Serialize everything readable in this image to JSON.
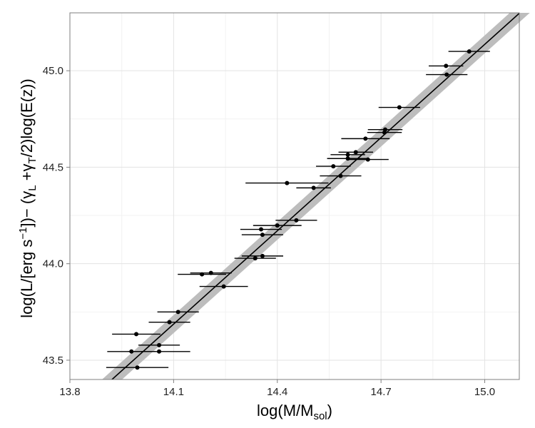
{
  "chart_data": {
    "type": "scatter",
    "title": "",
    "xlabel": {
      "base": "log(M/M",
      "sub": "sol",
      "tail": ")"
    },
    "ylabel": {
      "p1": "log(L/[erg s",
      "sup": "−1",
      "p2": "])− (γ",
      "subL": "L",
      "p3": " +γ",
      "subT": "T",
      "p4": "/2)log(E(z))"
    },
    "xlim": [
      13.8,
      15.1
    ],
    "ylim": [
      43.4,
      45.3
    ],
    "xticks": [
      13.8,
      14.1,
      14.4,
      14.7,
      15.0
    ],
    "xtick_labels": [
      "13.8",
      "14.1",
      "14.4",
      "14.7",
      "15.0"
    ],
    "yticks": [
      43.5,
      44.0,
      44.5,
      45.0
    ],
    "ytick_labels": [
      "43.5",
      "44.0",
      "44.5",
      "45.0"
    ],
    "grid": true,
    "fit_line": {
      "x": [
        13.9,
        15.12
      ],
      "y": [
        43.365,
        45.33
      ],
      "band_halfwidth": 0.04
    },
    "points": [
      {
        "x": 13.995,
        "y": 43.462,
        "xerr": 0.09
      },
      {
        "x": 13.978,
        "y": 43.545,
        "xerr": 0.07
      },
      {
        "x": 13.992,
        "y": 43.635,
        "xerr": 0.07
      },
      {
        "x": 14.058,
        "y": 43.545,
        "xerr": 0.09
      },
      {
        "x": 14.058,
        "y": 43.578,
        "xerr": 0.06
      },
      {
        "x": 14.088,
        "y": 43.697,
        "xerr": 0.06
      },
      {
        "x": 14.113,
        "y": 43.75,
        "xerr": 0.06
      },
      {
        "x": 14.182,
        "y": 43.945,
        "xerr": 0.07
      },
      {
        "x": 14.208,
        "y": 43.952,
        "xerr": 0.06
      },
      {
        "x": 14.245,
        "y": 43.882,
        "xerr": 0.07
      },
      {
        "x": 14.336,
        "y": 44.028,
        "xerr": 0.06
      },
      {
        "x": 14.357,
        "y": 44.04,
        "xerr": 0.06
      },
      {
        "x": 14.357,
        "y": 44.15,
        "xerr": 0.06
      },
      {
        "x": 14.353,
        "y": 44.178,
        "xerr": 0.06
      },
      {
        "x": 14.4,
        "y": 44.198,
        "xerr": 0.07
      },
      {
        "x": 14.455,
        "y": 44.225,
        "xerr": 0.06
      },
      {
        "x": 14.428,
        "y": 44.418,
        "xerr": 0.12
      },
      {
        "x": 14.505,
        "y": 44.393,
        "xerr": 0.05
      },
      {
        "x": 14.562,
        "y": 44.505,
        "xerr": 0.05
      },
      {
        "x": 14.583,
        "y": 44.455,
        "xerr": 0.06
      },
      {
        "x": 14.604,
        "y": 44.545,
        "xerr": 0.06
      },
      {
        "x": 14.604,
        "y": 44.565,
        "xerr": 0.05
      },
      {
        "x": 14.627,
        "y": 44.578,
        "xerr": 0.05
      },
      {
        "x": 14.662,
        "y": 44.54,
        "xerr": 0.06
      },
      {
        "x": 14.655,
        "y": 44.648,
        "xerr": 0.07
      },
      {
        "x": 14.71,
        "y": 44.68,
        "xerr": 0.05
      },
      {
        "x": 14.712,
        "y": 44.695,
        "xerr": 0.05
      },
      {
        "x": 14.753,
        "y": 44.81,
        "xerr": 0.06
      },
      {
        "x": 14.888,
        "y": 45.025,
        "xerr": 0.05
      },
      {
        "x": 14.89,
        "y": 44.98,
        "xerr": 0.06
      },
      {
        "x": 14.955,
        "y": 45.1,
        "xerr": 0.06
      }
    ]
  }
}
